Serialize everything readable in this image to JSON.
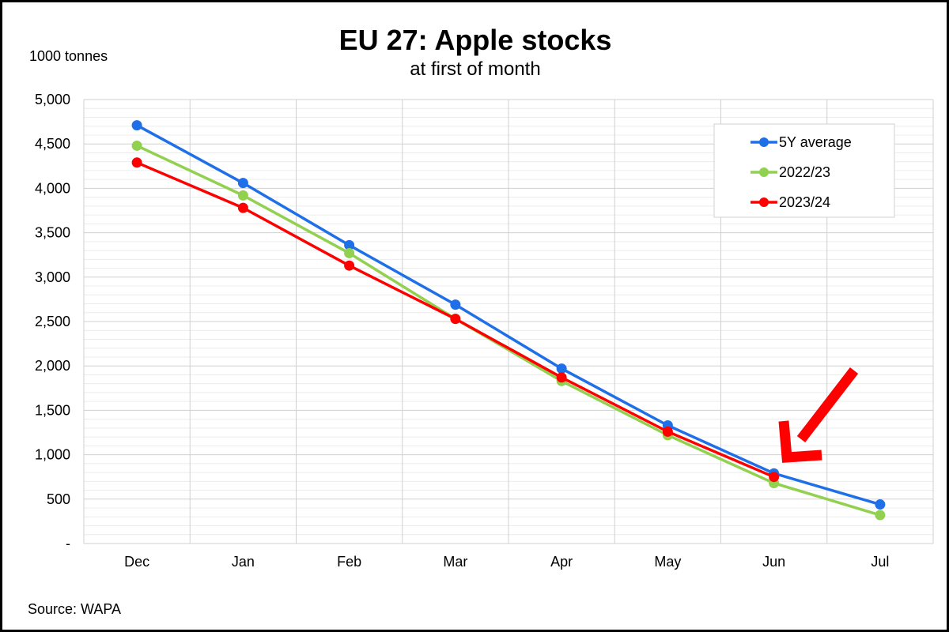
{
  "chart_data": {
    "type": "line",
    "title": "EU 27: Apple stocks",
    "subtitle": "at first of month",
    "unit_label": "1000 tonnes",
    "xlabel": "",
    "ylabel": "",
    "categories": [
      "Dec",
      "Jan",
      "Feb",
      "Mar",
      "Apr",
      "May",
      "Jun",
      "Jul"
    ],
    "ylim": [
      0,
      5000
    ],
    "y_ticks": [
      {
        "value": 0,
        "label": "-"
      },
      {
        "value": 500,
        "label": "500"
      },
      {
        "value": 1000,
        "label": "1,000"
      },
      {
        "value": 1500,
        "label": "1,500"
      },
      {
        "value": 2000,
        "label": "2,000"
      },
      {
        "value": 2500,
        "label": "2,500"
      },
      {
        "value": 3000,
        "label": "3,000"
      },
      {
        "value": 3500,
        "label": "3,500"
      },
      {
        "value": 4000,
        "label": "4,000"
      },
      {
        "value": 4500,
        "label": "4,500"
      },
      {
        "value": 5000,
        "label": "5,000"
      }
    ],
    "grid": true,
    "legend_position": "top-right",
    "series": [
      {
        "name": "5Y average",
        "color": "#1f6fe8",
        "values": [
          4710,
          4060,
          3360,
          2690,
          1970,
          1330,
          790,
          440
        ]
      },
      {
        "name": "2022/23",
        "color": "#92d050",
        "values": [
          4480,
          3920,
          3270,
          2530,
          1830,
          1220,
          680,
          320
        ]
      },
      {
        "name": "2023/24",
        "color": "#ff0000",
        "values": [
          4290,
          3780,
          3130,
          2530,
          1870,
          1260,
          750,
          null
        ]
      }
    ],
    "annotation": {
      "type": "arrow",
      "color": "#ff0000",
      "points_to_category": "Jun"
    },
    "source": "Source: WAPA"
  }
}
